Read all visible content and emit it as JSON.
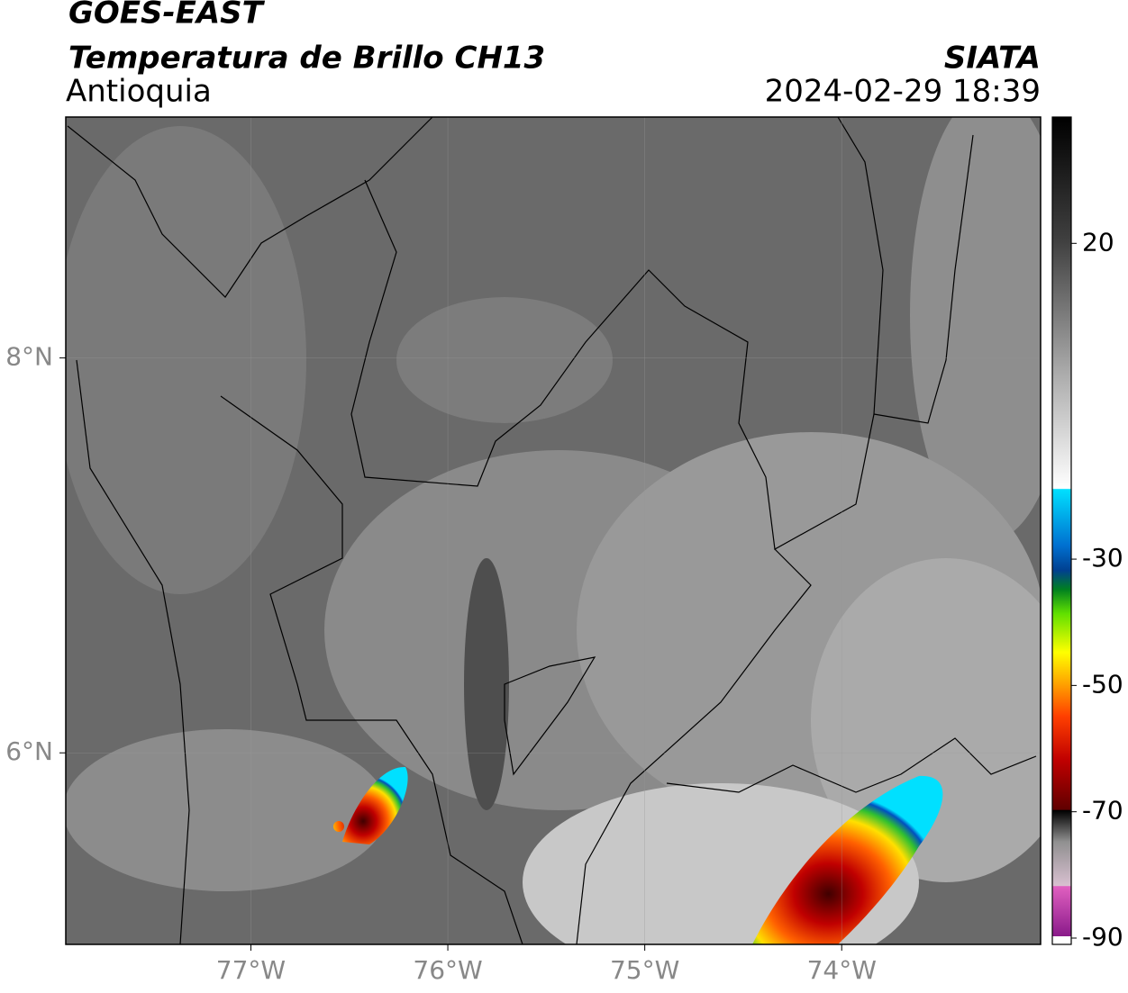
{
  "chart_data": {
    "type": "map",
    "title": "GOES-EAST",
    "subtitle": "Temperatura de Brillo CH13",
    "region": "Antioquia",
    "source": "SIATA",
    "timestamp": "2024-02-29 18:39",
    "xlim": [
      -77.94,
      -72.99
    ],
    "ylim": [
      5.03,
      9.22
    ],
    "xticks": [
      {
        "value": -77,
        "label": "77°W"
      },
      {
        "value": -76,
        "label": "76°W"
      },
      {
        "value": -75,
        "label": "75°W"
      },
      {
        "value": -74,
        "label": "74°W"
      }
    ],
    "yticks": [
      {
        "value": 6,
        "label": "6°N"
      },
      {
        "value": 8,
        "label": "8°N"
      }
    ],
    "grid": true,
    "colorbar": {
      "lim": [
        -91,
        40
      ],
      "ticks": [
        -90,
        -70,
        -50,
        -30,
        20
      ]
    }
  }
}
